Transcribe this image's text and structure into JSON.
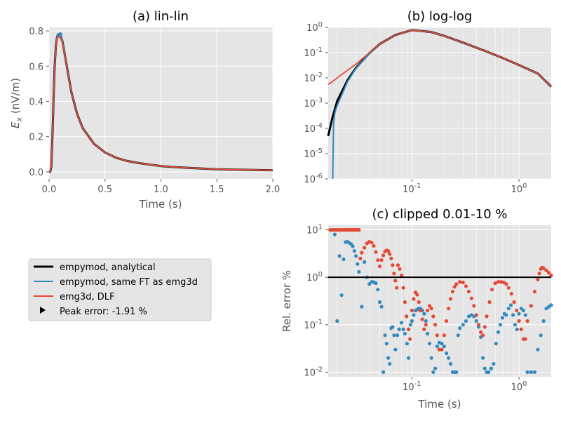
{
  "colors": {
    "analytical": "#000000",
    "same_ft": "#348ABD",
    "dlf": "#E24A33",
    "axes_bg": "#E5E5E5",
    "grid": "#FFFFFF"
  },
  "legend": {
    "items": [
      {
        "label": "empymod, analytical",
        "marker": "line",
        "color": "#000000"
      },
      {
        "label": "empymod, same FT as emg3d",
        "marker": "line",
        "color": "#348ABD"
      },
      {
        "label": "emg3d, DLF",
        "marker": "line",
        "color": "#E24A33"
      },
      {
        "label": "Peak error: -1.91 %",
        "marker": "triangle",
        "color": "#000000"
      }
    ]
  },
  "chart_data": [
    {
      "type": "line",
      "title": "(a) lin-lin",
      "xlabel": "Time (s)",
      "ylabel_main": "E",
      "ylabel_sub": "x",
      "ylabel_unit": " (nV/m)",
      "xlim": [
        0.0,
        2.0
      ],
      "ylim": [
        -0.04,
        0.82
      ],
      "xticks": [
        0.0,
        0.5,
        1.0,
        1.5,
        2.0
      ],
      "xtick_labels": [
        "0.0",
        "0.5",
        "1.0",
        "1.5",
        "2.0"
      ],
      "yticks": [
        0.0,
        0.2,
        0.4,
        0.6,
        0.8
      ],
      "ytick_labels": [
        "0.0",
        "0.2",
        "0.4",
        "0.6",
        "0.8"
      ],
      "grid": true,
      "series": [
        {
          "name": "empymod, analytical",
          "color": "#000000",
          "x": [
            0.0,
            0.01,
            0.02,
            0.03,
            0.04,
            0.05,
            0.06,
            0.07,
            0.08,
            0.09,
            0.1,
            0.12,
            0.15,
            0.2,
            0.25,
            0.3,
            0.4,
            0.5,
            0.6,
            0.7,
            0.8,
            1.0,
            1.2,
            1.5,
            2.0
          ],
          "y": [
            0.0,
            0.0,
            0.03,
            0.2,
            0.42,
            0.6,
            0.71,
            0.76,
            0.78,
            0.78,
            0.775,
            0.74,
            0.63,
            0.45,
            0.33,
            0.25,
            0.16,
            0.11,
            0.08,
            0.062,
            0.05,
            0.033,
            0.024,
            0.015,
            0.009
          ]
        },
        {
          "name": "empymod, same FT as emg3d",
          "color": "#348ABD",
          "x": [
            0.0,
            0.01,
            0.02,
            0.03,
            0.04,
            0.05,
            0.06,
            0.07,
            0.08,
            0.09,
            0.1,
            0.12,
            0.15,
            0.2,
            0.25,
            0.3,
            0.4,
            0.5,
            0.6,
            0.7,
            0.8,
            1.0,
            1.2,
            1.5,
            2.0
          ],
          "y": [
            0.0,
            0.0,
            0.03,
            0.2,
            0.42,
            0.6,
            0.71,
            0.76,
            0.78,
            0.78,
            0.775,
            0.74,
            0.63,
            0.45,
            0.33,
            0.25,
            0.16,
            0.11,
            0.08,
            0.062,
            0.05,
            0.033,
            0.024,
            0.015,
            0.009
          ]
        },
        {
          "name": "emg3d, DLF",
          "color": "#E24A33",
          "x": [
            0.0,
            0.01,
            0.02,
            0.03,
            0.04,
            0.05,
            0.06,
            0.07,
            0.08,
            0.09,
            0.1,
            0.12,
            0.15,
            0.2,
            0.25,
            0.3,
            0.4,
            0.5,
            0.6,
            0.7,
            0.8,
            1.0,
            1.2,
            1.5,
            2.0
          ],
          "y": [
            0.0,
            0.005,
            0.03,
            0.19,
            0.41,
            0.59,
            0.7,
            0.75,
            0.765,
            0.765,
            0.76,
            0.73,
            0.625,
            0.45,
            0.33,
            0.25,
            0.16,
            0.11,
            0.08,
            0.062,
            0.05,
            0.033,
            0.024,
            0.015,
            0.009
          ]
        }
      ],
      "peak_marker": {
        "x": 0.1,
        "y": 0.78
      }
    },
    {
      "type": "line",
      "title": "(b) log-log",
      "xscale": "log",
      "yscale": "log",
      "xlim": [
        0.0165,
        2.0
      ],
      "ylim": [
        1e-06,
        1.0
      ],
      "xticks": [
        0.1,
        1.0
      ],
      "xtick_exponents": [
        "-1",
        "0"
      ],
      "yticks": [
        1e-06,
        1e-05,
        0.0001,
        0.001,
        0.01,
        0.1,
        1
      ],
      "ytick_exponents": [
        "-6",
        "-5",
        "-4",
        "-3",
        "-2",
        "-1",
        "0"
      ],
      "tick_base": "10",
      "grid": true,
      "series": [
        {
          "name": "empymod, analytical",
          "color": "#000000",
          "x": [
            0.0165,
            0.018,
            0.02,
            0.025,
            0.03,
            0.04,
            0.05,
            0.07,
            0.1,
            0.15,
            0.2,
            0.3,
            0.5,
            0.7,
            1.0,
            1.5,
            2.0
          ],
          "y": [
            5e-05,
            0.00025,
            0.0012,
            0.008,
            0.025,
            0.095,
            0.22,
            0.5,
            0.78,
            0.66,
            0.46,
            0.25,
            0.11,
            0.062,
            0.032,
            0.015,
            0.0045
          ]
        },
        {
          "name": "empymod, same FT as emg3d",
          "color": "#348ABD",
          "x": [
            0.0182,
            0.0185,
            0.019,
            0.02,
            0.025,
            0.03,
            0.04,
            0.05,
            0.07,
            0.1,
            0.15,
            0.2,
            0.3,
            0.5,
            0.7,
            1.0,
            1.5,
            2.0
          ],
          "y": [
            1e-06,
            0.00015,
            0.0004,
            0.0008,
            0.007,
            0.024,
            0.094,
            0.22,
            0.5,
            0.78,
            0.66,
            0.46,
            0.25,
            0.11,
            0.062,
            0.032,
            0.015,
            0.0045
          ]
        },
        {
          "name": "emg3d, DLF",
          "color": "#E24A33",
          "x": [
            0.0165,
            0.018,
            0.02,
            0.025,
            0.03,
            0.04,
            0.05,
            0.07,
            0.1,
            0.15,
            0.2,
            0.3,
            0.5,
            0.7,
            1.0,
            1.5,
            2.0
          ],
          "y": [
            0.0055,
            0.007,
            0.01,
            0.02,
            0.035,
            0.1,
            0.22,
            0.5,
            0.77,
            0.66,
            0.46,
            0.25,
            0.11,
            0.062,
            0.032,
            0.015,
            0.0045
          ]
        }
      ]
    },
    {
      "type": "scatter",
      "title": "(c) clipped 0.01-10 %",
      "xlabel": "Time (s)",
      "ylabel": "Rel. error %",
      "xscale": "log",
      "yscale": "log",
      "xlim": [
        0.0165,
        2.0
      ],
      "ylim": [
        0.008,
        12.5
      ],
      "xticks": [
        0.1,
        1.0
      ],
      "xtick_exponents": [
        "-1",
        "0"
      ],
      "yticks": [
        0.01,
        0.1,
        1,
        10
      ],
      "ytick_exponents": [
        "-2",
        "-1",
        "0",
        "1"
      ],
      "tick_base": "10",
      "grid": true,
      "hline": {
        "y": 1,
        "color": "#000000"
      },
      "series": [
        {
          "name": "empymod, same FT as emg3d",
          "color": "#348ABD",
          "x": [
            0.019,
            0.02,
            0.021,
            0.022,
            0.023,
            0.024,
            0.025,
            0.026,
            0.027,
            0.028,
            0.029,
            0.03,
            0.031,
            0.032,
            0.034,
            0.036,
            0.038,
            0.04,
            0.042,
            0.044,
            0.046,
            0.048,
            0.05,
            0.052,
            0.054,
            0.056,
            0.058,
            0.06,
            0.062,
            0.064,
            0.066,
            0.068,
            0.07,
            0.073,
            0.076,
            0.08,
            0.083,
            0.086,
            0.09,
            0.093,
            0.097,
            0.1,
            0.104,
            0.108,
            0.112,
            0.116,
            0.12,
            0.125,
            0.13,
            0.135,
            0.14,
            0.146,
            0.152,
            0.158,
            0.165,
            0.172,
            0.18,
            0.19,
            0.2,
            0.21,
            0.22,
            0.23,
            0.24,
            0.25,
            0.26,
            0.27,
            0.28,
            0.3,
            0.32,
            0.34,
            0.36,
            0.38,
            0.4,
            0.42,
            0.44,
            0.46,
            0.48,
            0.5,
            0.52,
            0.55,
            0.58,
            0.61,
            0.64,
            0.67,
            0.7,
            0.73,
            0.76,
            0.8,
            0.84,
            0.88,
            0.92,
            0.96,
            1.0,
            1.05,
            1.1,
            1.15,
            1.2,
            1.3,
            1.4,
            1.5,
            1.6,
            1.7,
            1.8,
            1.9,
            2.0
          ],
          "y": [
            8.0,
            0.12,
            2.8,
            0.42,
            2.4,
            5.5,
            5.6,
            5.3,
            5.0,
            4.5,
            3.6,
            2.8,
            1.9,
            1.3,
            0.24,
            2.1,
            1.0,
            0.72,
            0.8,
            0.79,
            0.75,
            0.55,
            0.3,
            0.24,
            0.01,
            0.06,
            0.04,
            0.02,
            0.015,
            0.085,
            0.09,
            0.06,
            0.03,
            0.06,
            0.08,
            0.11,
            0.08,
            0.065,
            0.04,
            0.02,
            0.1,
            0.12,
            0.16,
            0.2,
            0.21,
            0.22,
            0.22,
            0.2,
            0.17,
            0.12,
            0.065,
            0.04,
            0.02,
            0.01,
            0.012,
            0.035,
            0.042,
            0.04,
            0.035,
            0.025,
            0.02,
            0.015,
            0.01,
            0.01,
            0.01,
            0.06,
            0.085,
            0.1,
            0.12,
            0.15,
            0.16,
            0.15,
            0.12,
            0.09,
            0.055,
            0.02,
            0.012,
            0.01,
            0.01,
            0.012,
            0.015,
            0.04,
            0.07,
            0.1,
            0.14,
            0.17,
            0.16,
            0.22,
            0.26,
            0.16,
            0.1,
            0.08,
            0.17,
            0.22,
            0.2,
            0.16,
            0.01,
            0.01,
            0.01,
            0.03,
            0.06,
            0.12,
            0.22,
            0.24,
            0.26
          ]
        },
        {
          "name": "emg3d, DLF",
          "color": "#E24A33",
          "x": [
            0.0172,
            0.018,
            0.0188,
            0.0196,
            0.0204,
            0.0212,
            0.022,
            0.0228,
            0.0236,
            0.0244,
            0.0252,
            0.026,
            0.0268,
            0.0276,
            0.0284,
            0.0292,
            0.03,
            0.031,
            0.032,
            0.033,
            0.034,
            0.036,
            0.038,
            0.04,
            0.042,
            0.044,
            0.046,
            0.048,
            0.05,
            0.052,
            0.054,
            0.056,
            0.058,
            0.06,
            0.062,
            0.064,
            0.066,
            0.068,
            0.07,
            0.072,
            0.074,
            0.077,
            0.08,
            0.083,
            0.086,
            0.089,
            0.093,
            0.096,
            0.1,
            0.104,
            0.108,
            0.112,
            0.116,
            0.12,
            0.125,
            0.13,
            0.135,
            0.14,
            0.146,
            0.152,
            0.158,
            0.165,
            0.172,
            0.18,
            0.19,
            0.2,
            0.21,
            0.22,
            0.23,
            0.24,
            0.25,
            0.26,
            0.28,
            0.3,
            0.32,
            0.34,
            0.36,
            0.38,
            0.4,
            0.42,
            0.44,
            0.46,
            0.48,
            0.5,
            0.53,
            0.56,
            0.6,
            0.64,
            0.68,
            0.72,
            0.76,
            0.8,
            0.85,
            0.9,
            0.95,
            1.0,
            1.05,
            1.1,
            1.15,
            1.2,
            1.3,
            1.4,
            1.5,
            1.55,
            1.6,
            1.65,
            1.7,
            1.8,
            1.9,
            2.0
          ],
          "y": [
            10,
            10,
            10,
            10,
            10,
            10,
            10,
            10,
            10,
            10,
            10,
            10,
            10,
            10,
            10,
            10,
            10,
            10,
            10,
            2.5,
            3.3,
            4.2,
            5.2,
            5.6,
            5.4,
            4.6,
            3.4,
            2.3,
            1.7,
            2.3,
            2.9,
            3.5,
            3.7,
            3.6,
            3.1,
            2.5,
            1.8,
            1.2,
            0.85,
            0.6,
            1.8,
            1.5,
            1.1,
            0.6,
            0.3,
            0.15,
            0.08,
            0.05,
            0.2,
            0.35,
            0.48,
            0.43,
            0.3,
            0.2,
            0.13,
            0.08,
            0.1,
            0.2,
            0.25,
            0.22,
            0.15,
            0.1,
            0.06,
            0.03,
            0.03,
            0.06,
            0.12,
            0.22,
            0.35,
            0.5,
            0.63,
            0.72,
            0.8,
            0.78,
            0.65,
            0.5,
            0.36,
            0.25,
            0.16,
            0.1,
            0.07,
            0.06,
            0.09,
            0.15,
            0.3,
            0.55,
            0.75,
            0.8,
            0.8,
            0.78,
            0.72,
            0.6,
            0.45,
            0.3,
            0.2,
            0.12,
            0.08,
            0.05,
            0.05,
            0.12,
            0.25,
            0.5,
            0.9,
            1.2,
            1.5,
            1.6,
            1.55,
            1.4,
            1.25,
            1.1
          ]
        }
      ]
    }
  ]
}
